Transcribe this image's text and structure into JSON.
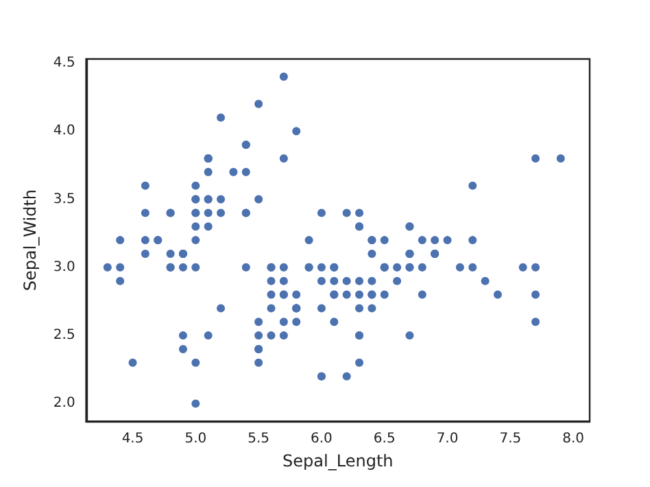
{
  "chart_data": {
    "type": "scatter",
    "xlabel": "Sepal_Length",
    "ylabel": "Sepal_Width",
    "xlim": [
      4.13,
      8.13
    ],
    "ylim": [
      1.87,
      4.53
    ],
    "xticks": [
      4.5,
      {
        "value": 5,
        "label": "5.0"
      },
      5.5,
      {
        "value": 6,
        "label": "6.0"
      },
      6.5,
      {
        "value": 7,
        "label": "7.0"
      },
      7.5,
      {
        "value": 8,
        "label": "8.0"
      }
    ],
    "yticks": [
      {
        "value": 2,
        "label": "2.0"
      },
      2.5,
      {
        "value": 3,
        "label": "3.0"
      },
      3.5,
      {
        "value": 4,
        "label": "4.0"
      },
      4.5
    ],
    "grid": false,
    "marker": "circle",
    "series": [
      {
        "color": "#4c72b0",
        "x": [
          5.1,
          4.9,
          4.7,
          4.6,
          5.0,
          5.4,
          4.6,
          5.0,
          4.4,
          4.9,
          5.4,
          4.8,
          4.8,
          4.3,
          5.8,
          5.7,
          5.4,
          5.1,
          5.7,
          5.1,
          5.4,
          5.1,
          4.6,
          5.1,
          4.8,
          5.0,
          5.0,
          5.2,
          5.2,
          4.7,
          4.8,
          5.4,
          5.2,
          5.5,
          4.9,
          5.0,
          5.5,
          4.9,
          4.4,
          5.1,
          5.0,
          4.5,
          4.4,
          5.0,
          5.1,
          4.8,
          5.1,
          4.6,
          5.3,
          5.0,
          7.0,
          6.4,
          6.9,
          5.5,
          6.5,
          5.7,
          6.3,
          4.9,
          6.6,
          5.2,
          5.0,
          5.9,
          6.0,
          6.1,
          5.6,
          6.7,
          5.6,
          5.8,
          6.2,
          5.6,
          5.9,
          6.1,
          6.3,
          6.1,
          6.4,
          6.6,
          6.8,
          6.7,
          6.0,
          5.7,
          5.5,
          5.5,
          5.8,
          6.0,
          5.4,
          6.0,
          6.7,
          6.3,
          5.6,
          5.5,
          5.5,
          6.1,
          5.8,
          5.0,
          5.6,
          5.7,
          5.7,
          6.2,
          5.1,
          5.7,
          6.3,
          5.8,
          7.1,
          6.3,
          6.5,
          7.6,
          4.9,
          7.3,
          6.7,
          7.2,
          6.5,
          6.4,
          6.8,
          5.7,
          5.8,
          6.4,
          6.5,
          7.7,
          7.7,
          6.0,
          6.9,
          5.6,
          7.7,
          6.3,
          6.7,
          7.2,
          6.2,
          6.1,
          6.4,
          7.2,
          7.4,
          7.9,
          6.4,
          6.3,
          6.1,
          7.7,
          6.3,
          6.4,
          6.0,
          6.9,
          6.7,
          6.9,
          5.8,
          6.8,
          6.7,
          6.7,
          6.3,
          6.5,
          6.2,
          5.9
        ],
        "values": [
          3.5,
          3.0,
          3.2,
          3.1,
          3.6,
          3.9,
          3.4,
          3.4,
          2.9,
          3.1,
          3.7,
          3.4,
          3.0,
          3.0,
          4.0,
          4.4,
          3.9,
          3.5,
          3.8,
          3.8,
          3.4,
          3.7,
          3.6,
          3.3,
          3.4,
          3.0,
          3.4,
          3.5,
          3.4,
          3.2,
          3.1,
          3.4,
          4.1,
          4.2,
          3.1,
          3.2,
          3.5,
          3.1,
          3.0,
          3.4,
          3.5,
          2.3,
          3.2,
          3.5,
          3.8,
          3.0,
          3.8,
          3.2,
          3.7,
          3.3,
          3.2,
          3.2,
          3.1,
          2.3,
          2.8,
          2.8,
          3.3,
          2.4,
          2.9,
          2.7,
          2.0,
          3.0,
          2.2,
          2.9,
          2.9,
          3.1,
          3.0,
          2.7,
          2.2,
          2.5,
          3.2,
          2.8,
          2.5,
          2.8,
          2.9,
          3.0,
          2.8,
          3.0,
          2.9,
          2.6,
          2.4,
          2.4,
          2.7,
          2.7,
          3.0,
          3.4,
          3.1,
          2.3,
          3.0,
          2.5,
          2.6,
          3.0,
          2.6,
          2.3,
          2.7,
          3.0,
          2.9,
          2.9,
          2.5,
          2.8,
          3.3,
          2.7,
          3.0,
          2.9,
          3.0,
          3.0,
          2.5,
          2.9,
          2.5,
          3.6,
          3.2,
          2.7,
          3.0,
          2.5,
          2.8,
          3.2,
          3.0,
          3.8,
          2.6,
          2.2,
          3.2,
          2.8,
          2.8,
          2.7,
          3.3,
          3.2,
          2.8,
          3.0,
          2.8,
          3.0,
          2.8,
          3.8,
          2.8,
          2.8,
          2.6,
          3.0,
          3.4,
          3.1,
          3.0,
          3.1,
          3.1,
          3.1,
          2.7,
          3.2,
          3.3,
          3.0,
          2.5,
          3.0,
          3.4,
          3.0
        ]
      }
    ]
  }
}
